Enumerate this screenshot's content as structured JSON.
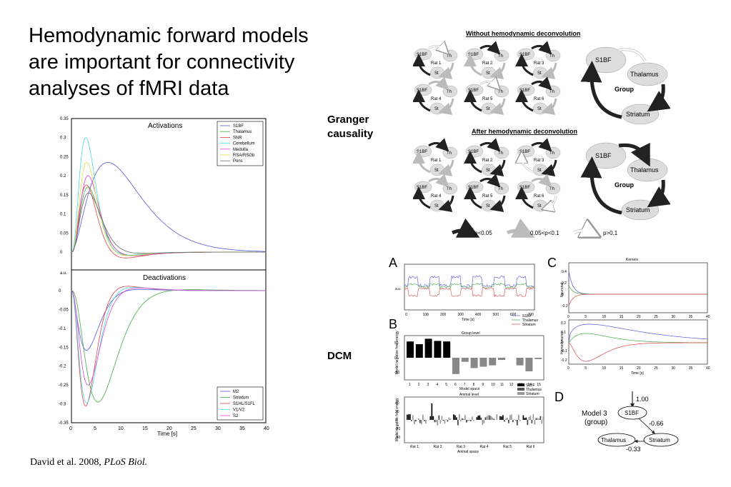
{
  "slide": {
    "title": "Hemodynamic forward models are important for connectivity analyses of fMRI data",
    "citation_text": "David et al. 2008, ",
    "citation_journal": "PLoS Biol.",
    "granger_label_1": "Granger",
    "granger_label_2": "causality",
    "dcm_label": "DCM"
  },
  "left_figure": {
    "activations_title": "Activations",
    "deactivations_title": "Deactivations",
    "y_axis_label": "a.u.",
    "x_axis_label": "Time [s]",
    "activation_legend": [
      "S1BF",
      "Thalamus",
      "SNR",
      "Cerebellum",
      "Medulla",
      "RSA/RSGb",
      "Pons"
    ],
    "deactivation_legend": [
      "M2",
      "Striatum",
      "S1HL/S1FL",
      "V1/V2",
      "S2"
    ],
    "activation_y_ticks": [
      "0.35",
      "0.3",
      "0.25",
      "0.2",
      "0.15",
      "0.1",
      "0.05",
      "0"
    ],
    "deactivation_y_ticks": [
      "0",
      "-0.05",
      "-0.1",
      "-0.15",
      "-0.2",
      "-0.25",
      "-0.3",
      "-0.35"
    ],
    "x_ticks": [
      "0",
      "5",
      "10",
      "15",
      "20",
      "25",
      "30",
      "35",
      "40"
    ],
    "colors": {
      "S1BF": "#5555dd",
      "Thalamus": "#44aa44",
      "SNR": "#dd4444",
      "Cerebellum": "#44dddd",
      "Medulla": "#dd44dd",
      "RSA/RSGb": "#dddd44",
      "Pons": "#666666",
      "M2": "#5555dd",
      "Striatum": "#44aa44",
      "S1HL/S1FL": "#dd4444",
      "V1/V2": "#44dddd",
      "S2": "#dd44dd"
    }
  },
  "granger": {
    "top_title": "Without hemodynamic deconvolution",
    "bottom_title": "After hemodynamic deconvolution",
    "node_s1bf": "S1BF",
    "node_th": "Th",
    "node_st": "St",
    "rats": [
      "Rat 1",
      "Rat 2",
      "Rat 3",
      "Rat 4",
      "Rat 5",
      "Rat 6"
    ],
    "group_label": "Group",
    "group_nodes": [
      "S1BF",
      "Thalamus",
      "Striatum"
    ],
    "legend": [
      "p<0.05",
      "0.05<p<0.1",
      "p>0.1"
    ]
  },
  "dcm": {
    "panel_a": "A",
    "panel_b": "B",
    "panel_c": "C",
    "panel_d": "D",
    "a_ylabel": "a.u.",
    "a_xlabel": "Time [s]",
    "a_xticks": [
      "0",
      "100",
      "200",
      "300",
      "400",
      "500",
      "600",
      "700"
    ],
    "a_legend": [
      "S1BF",
      "Thalamus",
      "Striatum"
    ],
    "b_title_group": "Group level",
    "b_title_animal": "Animal level",
    "b_ylabel": "Model negative free energy",
    "b_xlabel_group": "Model space",
    "b_xlabel_animal": "Animal space",
    "b_group_yticks": [
      "50",
      "0",
      "-50"
    ],
    "b_animal_yticks": [
      "40",
      "20",
      "0",
      "-20",
      "-40"
    ],
    "b_model_ticks": [
      "1",
      "2",
      "3",
      "4",
      "5",
      "6",
      "7",
      "8",
      "9",
      "10",
      "11",
      "12",
      "13",
      "14",
      "15"
    ],
    "b_animal_ticks": [
      "Rat 1",
      "Rat 2",
      "Rat 3",
      "Rat 4",
      "Rat 5",
      "Rat 6"
    ],
    "b_legend": [
      "S1BF",
      "Thalamus",
      "Striatum"
    ],
    "c_title": "Kernels",
    "c_ylabel_top": "Neuronal",
    "c_ylabel_bottom": "Hemodynamic",
    "c_xlabel": "Time [s]",
    "c_top_yticks": [
      "0.4",
      "0.2",
      "0",
      "-0.2"
    ],
    "c_bottom_yticks": [
      "0.2",
      "0.1",
      "0",
      "-0.1",
      "-0.2"
    ],
    "c_xticks": [
      "0",
      "5",
      "10",
      "15",
      "20",
      "25",
      "30",
      "35",
      "40"
    ],
    "d_model": "Model 3",
    "d_group": "(group)",
    "d_input": "1.00",
    "d_nodes": [
      "S1BF",
      "Thalamus",
      "Striatum"
    ],
    "d_values": [
      "-0.66",
      "-0.33"
    ]
  }
}
